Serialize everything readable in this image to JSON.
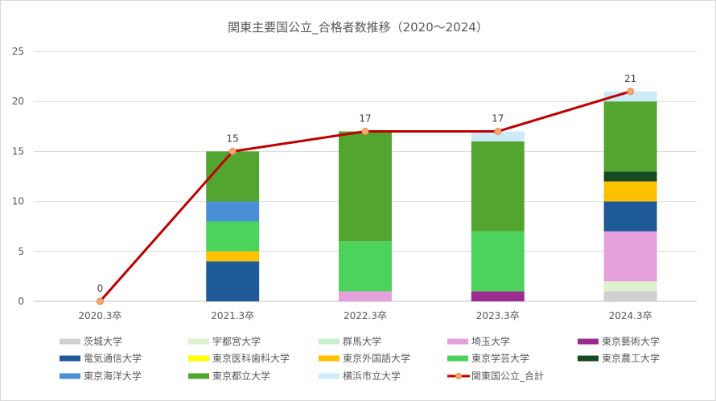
{
  "chart_data": {
    "type": "bar",
    "title": "関東主要国公立_合格者数推移（2020～2024）",
    "categories": [
      "2020.3卒",
      "2021.3卒",
      "2022.3卒",
      "2023.3卒",
      "2024.3卒"
    ],
    "ylim": [
      0,
      25
    ],
    "yticks": [
      0,
      5,
      10,
      15,
      20,
      25
    ],
    "grid": true,
    "legend_position": "bottom",
    "series": [
      {
        "name": "茨城大学",
        "type": "bar",
        "color": "#d0d0d0",
        "values": [
          0,
          0,
          0,
          0,
          1
        ]
      },
      {
        "name": "宇都宮大学",
        "type": "bar",
        "color": "#dff0cf",
        "values": [
          0,
          0,
          0,
          0,
          1
        ]
      },
      {
        "name": "群馬大学",
        "type": "bar",
        "color": "#c9efd0",
        "values": [
          0,
          0,
          0,
          0,
          0
        ]
      },
      {
        "name": "埼玉大学",
        "type": "bar",
        "color": "#e6a0dc",
        "values": [
          0,
          0,
          1,
          0,
          5
        ]
      },
      {
        "name": "東京藝術大学",
        "type": "bar",
        "color": "#9b2b8f",
        "values": [
          0,
          0,
          0,
          1,
          0
        ]
      },
      {
        "name": "電気通信大学",
        "type": "bar",
        "color": "#1f5b99",
        "values": [
          0,
          4,
          0,
          0,
          3
        ]
      },
      {
        "name": "東京医科歯科大学",
        "type": "bar",
        "color": "#ffff00",
        "values": [
          0,
          0,
          0,
          0,
          0
        ]
      },
      {
        "name": "東京外国語大学",
        "type": "bar",
        "color": "#ffc000",
        "values": [
          0,
          1,
          0,
          0,
          2
        ]
      },
      {
        "name": "東京学芸大学",
        "type": "bar",
        "color": "#4cd35c",
        "values": [
          0,
          3,
          5,
          6,
          0
        ]
      },
      {
        "name": "東京農工大学",
        "type": "bar",
        "color": "#144a1f",
        "values": [
          0,
          0,
          0,
          0,
          1
        ]
      },
      {
        "name": "東京海洋大学",
        "type": "bar",
        "color": "#4a90d9",
        "values": [
          0,
          2,
          0,
          0,
          0
        ]
      },
      {
        "name": "東京都立大学",
        "type": "bar",
        "color": "#52a62f",
        "values": [
          0,
          5,
          11,
          9,
          7
        ]
      },
      {
        "name": "横浜市立大学",
        "type": "bar",
        "color": "#cdeaf8",
        "values": [
          0,
          0,
          0,
          1,
          1
        ]
      },
      {
        "name": "関東国公立_合計",
        "type": "line",
        "color": "#c00000",
        "marker_color": "#f4a86a",
        "values": [
          0,
          15,
          17,
          17,
          21
        ],
        "labels": [
          "0",
          "15",
          "17",
          "17",
          "21"
        ]
      }
    ]
  }
}
